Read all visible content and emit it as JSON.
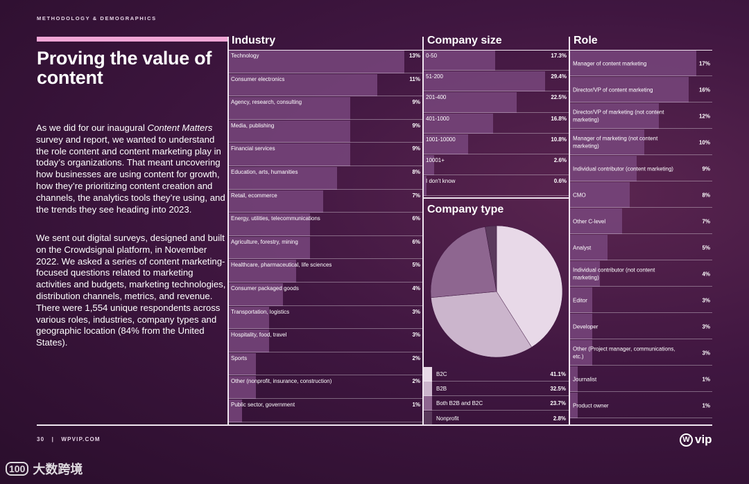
{
  "header": {
    "eyebrow": "METHODOLOGY & DEMOGRAPHICS"
  },
  "title": "Proving the value of content",
  "intro": {
    "p1_before": "As we did for our inaugural ",
    "p1_italic": "Content Matters",
    "p1_after": " survey and report, we wanted to understand the role content and content marketing play in today’s organizations. That meant uncovering how businesses are using content for growth, how they’re prioritizing content creation and channels, the analytics tools they’re using, and the trends they see heading into 2023.",
    "p2": "We sent out digital surveys, designed and built on the Crowdsignal platform, in November 2022. We asked a series of content marketing-focused questions related to marketing activities and budgets, marketing technologies, distribution channels, metrics, and revenue. There were 1,554 unique respondents across various roles, industries, company types and geographic location (84% from the United States)."
  },
  "chart_data": [
    {
      "type": "bar",
      "title": "Industry",
      "unit": "%",
      "categories": [
        "Technology",
        "Consumer electronics",
        "Agency, research, consulting",
        "Media, publishing",
        "Financial services",
        "Education, arts, humanities",
        "Retail, ecommerce",
        "Energy, utilities, telecommunications",
        "Agriculture, forestry, mining",
        "Healthcare, pharmaceutical, life sciences",
        "Consumer packaged goods",
        "Transportation, logistics",
        "Hospitality, food, travel",
        "Sports",
        "Other (nonprofit, insurance, construction)",
        "Public sector, government"
      ],
      "values": [
        13,
        11,
        9,
        9,
        9,
        8,
        7,
        6,
        6,
        5,
        4,
        3,
        3,
        2,
        2,
        1
      ],
      "labels": [
        "13%",
        "11%",
        "9%",
        "9%",
        "9%",
        "8%",
        "7%",
        "6%",
        "6%",
        "5%",
        "4%",
        "3%",
        "3%",
        "2%",
        "2%",
        "1%"
      ]
    },
    {
      "type": "bar",
      "title": "Company size",
      "unit": "%",
      "categories": [
        "0-50",
        "51-200",
        "201-400",
        "401-1000",
        "1001-10000",
        "10001+",
        "I don't know"
      ],
      "values": [
        17.3,
        29.4,
        22.5,
        16.8,
        10.8,
        2.6,
        0.6
      ],
      "labels": [
        "17.3%",
        "29.4%",
        "22.5%",
        "16.8%",
        "10.8%",
        "2.6%",
        "0.6%"
      ]
    },
    {
      "type": "pie",
      "title": "Company type",
      "categories": [
        "B2C",
        "B2B",
        "Both B2B and B2C",
        "Nonprofit"
      ],
      "values": [
        41.1,
        32.5,
        23.7,
        2.8
      ],
      "labels": [
        "41.1%",
        "32.5%",
        "23.7%",
        "2.8%"
      ],
      "colors": [
        "#e8d9e8",
        "#cbb5cc",
        "#8e6690",
        "#5a3a5c"
      ]
    },
    {
      "type": "bar",
      "title": "Role",
      "unit": "%",
      "categories": [
        "Manager of content marketing",
        "Director/VP of content marketing",
        "Director/VP of marketing (not content marketing)",
        "Manager of marketing (not content marketing)",
        "Individual contributor (content marketing)",
        "CMO",
        "Other C-level",
        "Analyst",
        "Individual contributor (not content marketing)",
        "Editor",
        "Developer",
        "Other (Project manager, communications, etc.)",
        "Journalist",
        "Product owner"
      ],
      "values": [
        17,
        16,
        12,
        10,
        9,
        8,
        7,
        5,
        4,
        3,
        3,
        3,
        1,
        1
      ],
      "labels": [
        "17%",
        "16%",
        "12%",
        "10%",
        "9%",
        "8%",
        "7%",
        "5%",
        "4%",
        "3%",
        "3%",
        "3%",
        "1%",
        "1%"
      ]
    }
  ],
  "footer": {
    "page": "30",
    "divider": "|",
    "site": "WPVIP.COM"
  },
  "brand": {
    "mark": "W",
    "text": "vip"
  },
  "watermark": {
    "mark": "100",
    "text": "大数跨境"
  },
  "colors": {
    "accent": "#f2a6d6",
    "bar": "#7a467d",
    "rule": "#f0e6f0"
  }
}
